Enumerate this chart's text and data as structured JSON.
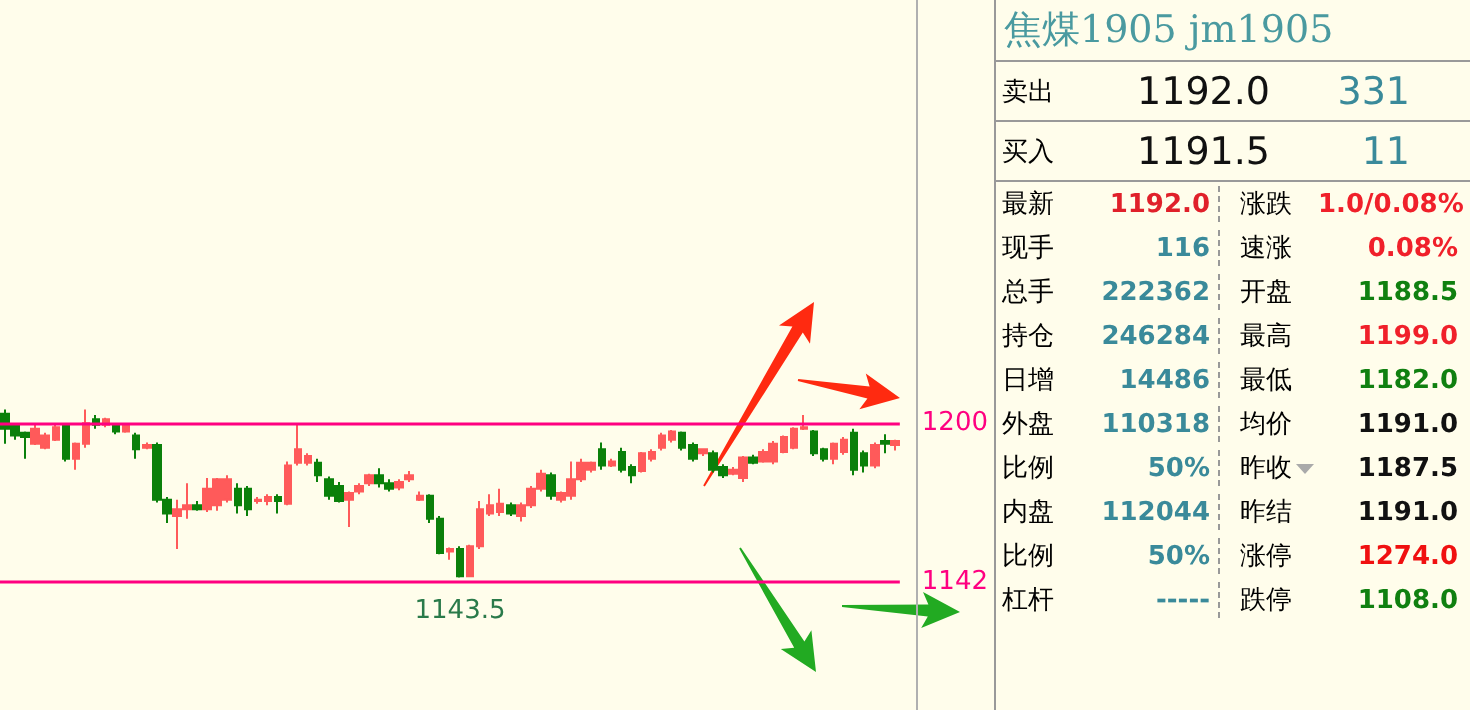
{
  "chart_data": [
    {
      "type": "candlestick",
      "categories": [
        null,
        null,
        null,
        null,
        null,
        null,
        null,
        null,
        null,
        null,
        null,
        null,
        null,
        null,
        null,
        null,
        null,
        null,
        null,
        null,
        null,
        null,
        null,
        null,
        null,
        null,
        null,
        null,
        null,
        null,
        null,
        null,
        null,
        null,
        null,
        null,
        null,
        null,
        null,
        null,
        null,
        null,
        null,
        null,
        null,
        null,
        null,
        null,
        null,
        null,
        null,
        null,
        null,
        null,
        null,
        null,
        null,
        null,
        null,
        null,
        null,
        null,
        null,
        null,
        null,
        null,
        null,
        null,
        null,
        null,
        null,
        null,
        null,
        null,
        null,
        null,
        null,
        null,
        null,
        null,
        null,
        null,
        null,
        null,
        null,
        null,
        null,
        null,
        null
      ],
      "ohlc": [
        [
          1203.5,
          1205,
          1192.5,
          1198
        ],
        [
          1199.5,
          1200,
          1194,
          1195.5
        ],
        [
          1196.5,
          1197,
          1187,
          1195
        ],
        [
          1192.5,
          1199.5,
          1192,
          1198
        ],
        [
          1191,
          1196.5,
          1190.5,
          1195.5
        ],
        [
          1194,
          1199.5,
          1193.5,
          1198.5
        ],
        [
          1199.5,
          1200,
          1186,
          1187
        ],
        [
          1187,
          1193,
          1183,
          1192.5
        ],
        [
          1192.5,
          1205,
          1191,
          1200
        ],
        [
          1201.5,
          1203,
          1198,
          1199.5
        ],
        [
          1199.5,
          1202,
          1198.5,
          1201.5
        ],
        [
          1199.5,
          1200,
          1196,
          1197
        ],
        [
          1197,
          1200,
          1196.5,
          1199.5
        ],
        [
          1195.5,
          1196.5,
          1187,
          1190.5
        ],
        [
          1191,
          1193,
          1190.5,
          1192
        ],
        [
          1192,
          1193,
          1171,
          1172
        ],
        [
          1172,
          1173,
          1163.5,
          1167
        ],
        [
          1166,
          1172,
          1154,
          1168.5
        ],
        [
          1168.5,
          1178,
          1165,
          1170
        ],
        [
          1170,
          1171.5,
          1168,
          1168.5
        ],
        [
          1168.5,
          1180,
          1167.5,
          1176
        ],
        [
          1170,
          1180,
          1168,
          1179.5
        ],
        [
          1172,
          1181,
          1171,
          1179.5
        ],
        [
          1176,
          1178,
          1167,
          1170
        ],
        [
          1176,
          1177,
          1166,
          1168.5
        ],
        [
          1171.5,
          1173,
          1170.5,
          1172
        ],
        [
          1171.5,
          1174,
          1170,
          1173
        ],
        [
          1173,
          1174,
          1167,
          1171.5
        ],
        [
          1170.5,
          1186,
          1170,
          1184.5
        ],
        [
          1185.5,
          1200,
          1184.5,
          1190.5
        ],
        [
          1185.5,
          1189,
          1184.5,
          1188
        ],
        [
          1185.5,
          1187,
          1178.5,
          1181
        ],
        [
          1179.5,
          1180.5,
          1172,
          1173.5
        ],
        [
          1177,
          1178.5,
          1171,
          1171.5
        ],
        [
          1172,
          1175,
          1162,
          1174.5
        ],
        [
          1175,
          1178,
          1174,
          1177
        ],
        [
          1178,
          1181.5,
          1177,
          1181
        ],
        [
          1181,
          1183.5,
          1176.5,
          1178
        ],
        [
          1178,
          1179.5,
          1175,
          1176
        ],
        [
          1176.5,
          1179.5,
          1175.5,
          1178.5
        ],
        [
          1179.5,
          1182.5,
          1178.5,
          1181
        ],
        [
          1172,
          1175,
          1171.5,
          1173.5
        ],
        [
          1173.5,
          1174,
          1163.5,
          1165
        ],
        [
          1165,
          1166,
          1152,
          1152.5
        ],
        [
          1153,
          1154.5,
          1150,
          1154
        ],
        [
          1154,
          1155,
          1143.5,
          1144
        ],
        [
          1144,
          1155.5,
          1144,
          1155
        ],
        [
          1155,
          1171.5,
          1154,
          1168.5
        ],
        [
          1167,
          1174,
          1166,
          1170
        ],
        [
          1167.5,
          1176,
          1166,
          1170.5
        ],
        [
          1170,
          1171,
          1166,
          1167
        ],
        [
          1166,
          1171,
          1164,
          1170
        ],
        [
          1170,
          1177,
          1169,
          1176
        ],
        [
          1176,
          1183,
          1175,
          1181.5
        ],
        [
          1181,
          1182,
          1172,
          1173.5
        ],
        [
          1172,
          1175,
          1171,
          1174.5
        ],
        [
          1173.5,
          1186,
          1172,
          1179.5
        ],
        [
          1179.5,
          1187,
          1178.5,
          1185.5
        ],
        [
          1183,
          1186,
          1182,
          1185.5
        ],
        [
          1190.5,
          1193,
          1183,
          1184.5
        ],
        [
          1184.5,
          1187,
          1184,
          1186
        ],
        [
          1189.5,
          1191,
          1182,
          1183
        ],
        [
          1184,
          1185,
          1178,
          1181
        ],
        [
          1182.5,
          1189.5,
          1182,
          1189
        ],
        [
          1187,
          1190.5,
          1186,
          1189.5
        ],
        [
          1191,
          1196.5,
          1190,
          1195.5
        ],
        [
          1194,
          1197.5,
          1193,
          1197
        ],
        [
          1196.5,
          1197,
          1190,
          1191
        ],
        [
          1192,
          1193,
          1186,
          1187
        ],
        [
          1189,
          1190.5,
          1188,
          1190.5
        ],
        [
          1189,
          1190,
          1182,
          1183
        ],
        [
          1184,
          1185,
          1180,
          1181
        ],
        [
          1181.5,
          1184,
          1181,
          1183
        ],
        [
          1180,
          1188,
          1178.5,
          1187.5
        ],
        [
          1187.5,
          1188.5,
          1185,
          1185.5
        ],
        [
          1186,
          1190.5,
          1185.5,
          1189.5
        ],
        [
          1186,
          1193.5,
          1185,
          1192.5
        ],
        [
          1189.5,
          1195.5,
          1189,
          1195
        ],
        [
          1191,
          1198.5,
          1190.5,
          1198
        ],
        [
          1198,
          1203,
          1197.5,
          1198.5
        ],
        [
          1197,
          1197.5,
          1188,
          1189
        ],
        [
          1190.5,
          1191,
          1186,
          1187
        ],
        [
          1187,
          1193,
          1185,
          1192.5
        ],
        [
          1189.5,
          1195,
          1188.5,
          1194
        ],
        [
          1196.5,
          1198,
          1181,
          1183
        ],
        [
          1189,
          1190,
          1182,
          1184.5
        ],
        [
          1184.5,
          1193,
          1183.5,
          1192
        ],
        [
          1193.5,
          1196,
          1189,
          1192.5
        ],
        [
          1192,
          1194,
          1190,
          1193.5
        ]
      ],
      "ylim": [
        1095,
        1355
      ],
      "yticks": [
        1142,
        1200
      ],
      "tick_labels": "y",
      "ref_lines": [
        {
          "axis": "y",
          "value": 1200,
          "color": "#ff0080"
        },
        {
          "axis": "y",
          "value": 1142,
          "color": "#ff0080"
        }
      ],
      "annotations": [
        {
          "text": "1143.5",
          "y": 1143.5
        }
      ]
    },
    {
      "type": "other",
      "title": "焦煤1905 jm1905",
      "annotations": [
        "卖出",
        "1192.0",
        "331",
        "买入",
        "1191.5",
        "11",
        "最新",
        "1192.0",
        "涨跌",
        "1.0/0.08%",
        "现手",
        "116",
        "速涨",
        "0.08%",
        "总手",
        "222362",
        "开盘",
        "1188.5",
        "持仓",
        "246284",
        "最高",
        "1199.0",
        "日增",
        "14486",
        "最低",
        "1182.0",
        "外盘",
        "110318",
        "均价",
        "1191.0",
        "比例",
        "50%",
        "昨收",
        "1187.5",
        "内盘",
        "112044",
        "昨结",
        "1191.0",
        "比例",
        "50%",
        "涨停",
        "1274.0",
        "杠杆",
        "-----",
        "跌停",
        "1108.0"
      ]
    }
  ]
}
